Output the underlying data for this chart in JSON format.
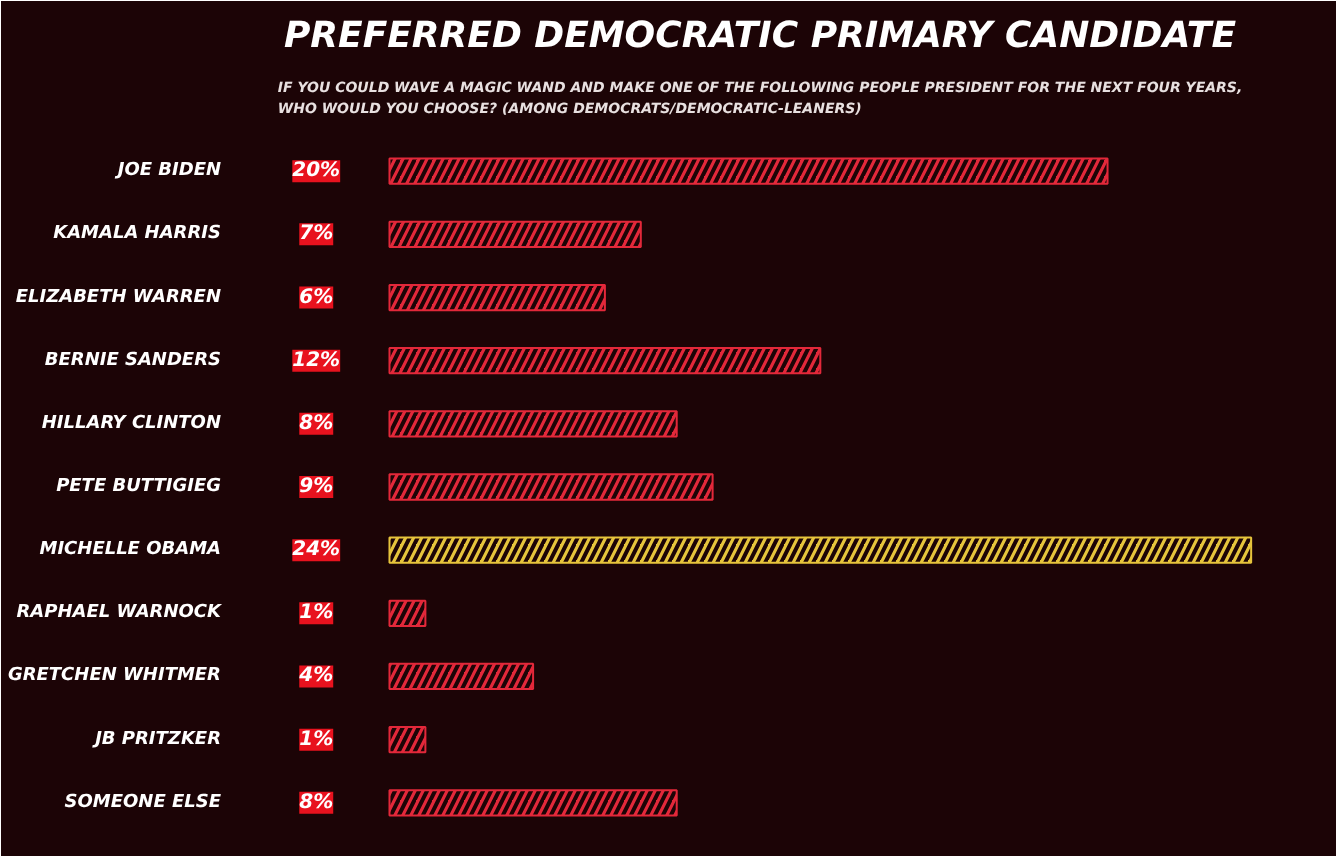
{
  "chart_data": {
    "type": "bar",
    "orientation": "horizontal",
    "title": "PREFERRED DEMOCRATIC PRIMARY CANDIDATE",
    "subtitle": "IF YOU COULD WAVE A MAGIC WAND AND MAKE ONE OF THE FOLLOWING PEOPLE PRESIDENT FOR THE NEXT FOUR YEARS,\nWHO WOULD YOU CHOOSE? (AMONG DEMOCRATS/DEMOCRATIC-LEANERS)",
    "categories": [
      "JOE BIDEN",
      "KAMALA HARRIS",
      "ELIZABETH WARREN",
      "BERNIE SANDERS",
      "HILLARY CLINTON",
      "PETE BUTTIGIEG",
      "MICHELLE OBAMA",
      "RAPHAEL WARNOCK",
      "GRETCHEN WHITMER",
      "JB PRITZKER",
      "SOMEONE ELSE"
    ],
    "values": [
      20,
      7,
      6,
      12,
      8,
      9,
      24,
      1,
      4,
      1,
      8
    ],
    "value_labels": [
      "20%",
      "7%",
      "6%",
      "12%",
      "8%",
      "9%",
      "24%",
      "1%",
      "4%",
      "1%",
      "8%"
    ],
    "colors": [
      "#e3283a",
      "#e3283a",
      "#e3283a",
      "#e3283a",
      "#e3283a",
      "#e3283a",
      "#e6c43c",
      "#e3283a",
      "#e3283a",
      "#e3283a",
      "#e3283a"
    ],
    "grid": false
  }
}
